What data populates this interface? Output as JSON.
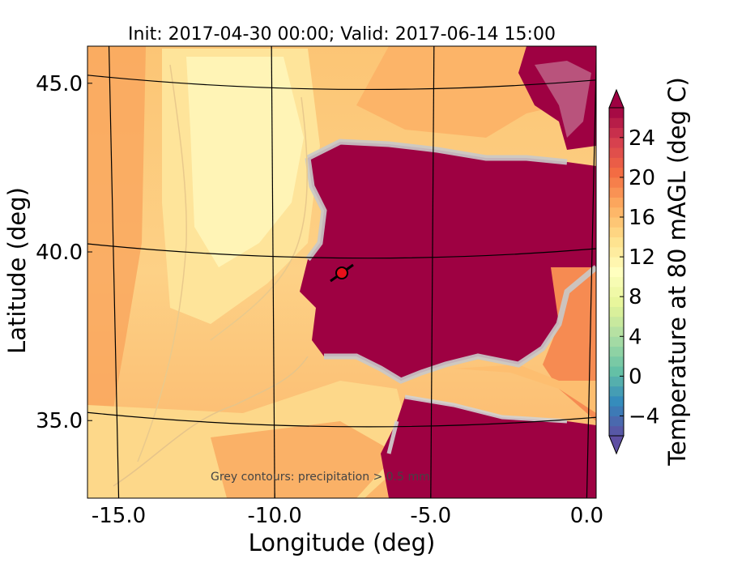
{
  "chart_data": {
    "type": "heatmap",
    "title": "Init: 2017-04-30 00:00; Valid: 2017-06-14 15:00",
    "xlabel": "Longitude (deg)",
    "ylabel": "Latitude (deg)",
    "x_ticks": [
      "-15.0",
      "-10.0",
      "-5.0",
      "0.0"
    ],
    "y_ticks": [
      "45.0",
      "40.0",
      "35.0"
    ],
    "xlim": [
      -16.0,
      0.3
    ],
    "ylim": [
      32.7,
      46.1
    ],
    "meridians": [
      -15,
      -10,
      -5,
      0
    ],
    "parallels": [
      35,
      40,
      45
    ],
    "colorbar": {
      "label": "Temperature at 80 mAGL (deg C)",
      "ticks": [
        "24",
        "20",
        "16",
        "12",
        "8",
        "4",
        "0",
        "−4"
      ],
      "range": [
        -6,
        27
      ],
      "extend": "both",
      "colormap": "Spectral_r"
    },
    "annotation": "Grey contours: precipitation > 0.5 mm",
    "marker": {
      "lon": -7.7,
      "lat": 39.35,
      "color": "#e8101a"
    },
    "field_colors": {
      "ocean_cool": "#fff2b0",
      "ocean_mild": "#fddc8c",
      "ocean_warm": "#fcb86a",
      "ocean_warmer": "#f99855",
      "land_hot": "#9e0142"
    }
  }
}
